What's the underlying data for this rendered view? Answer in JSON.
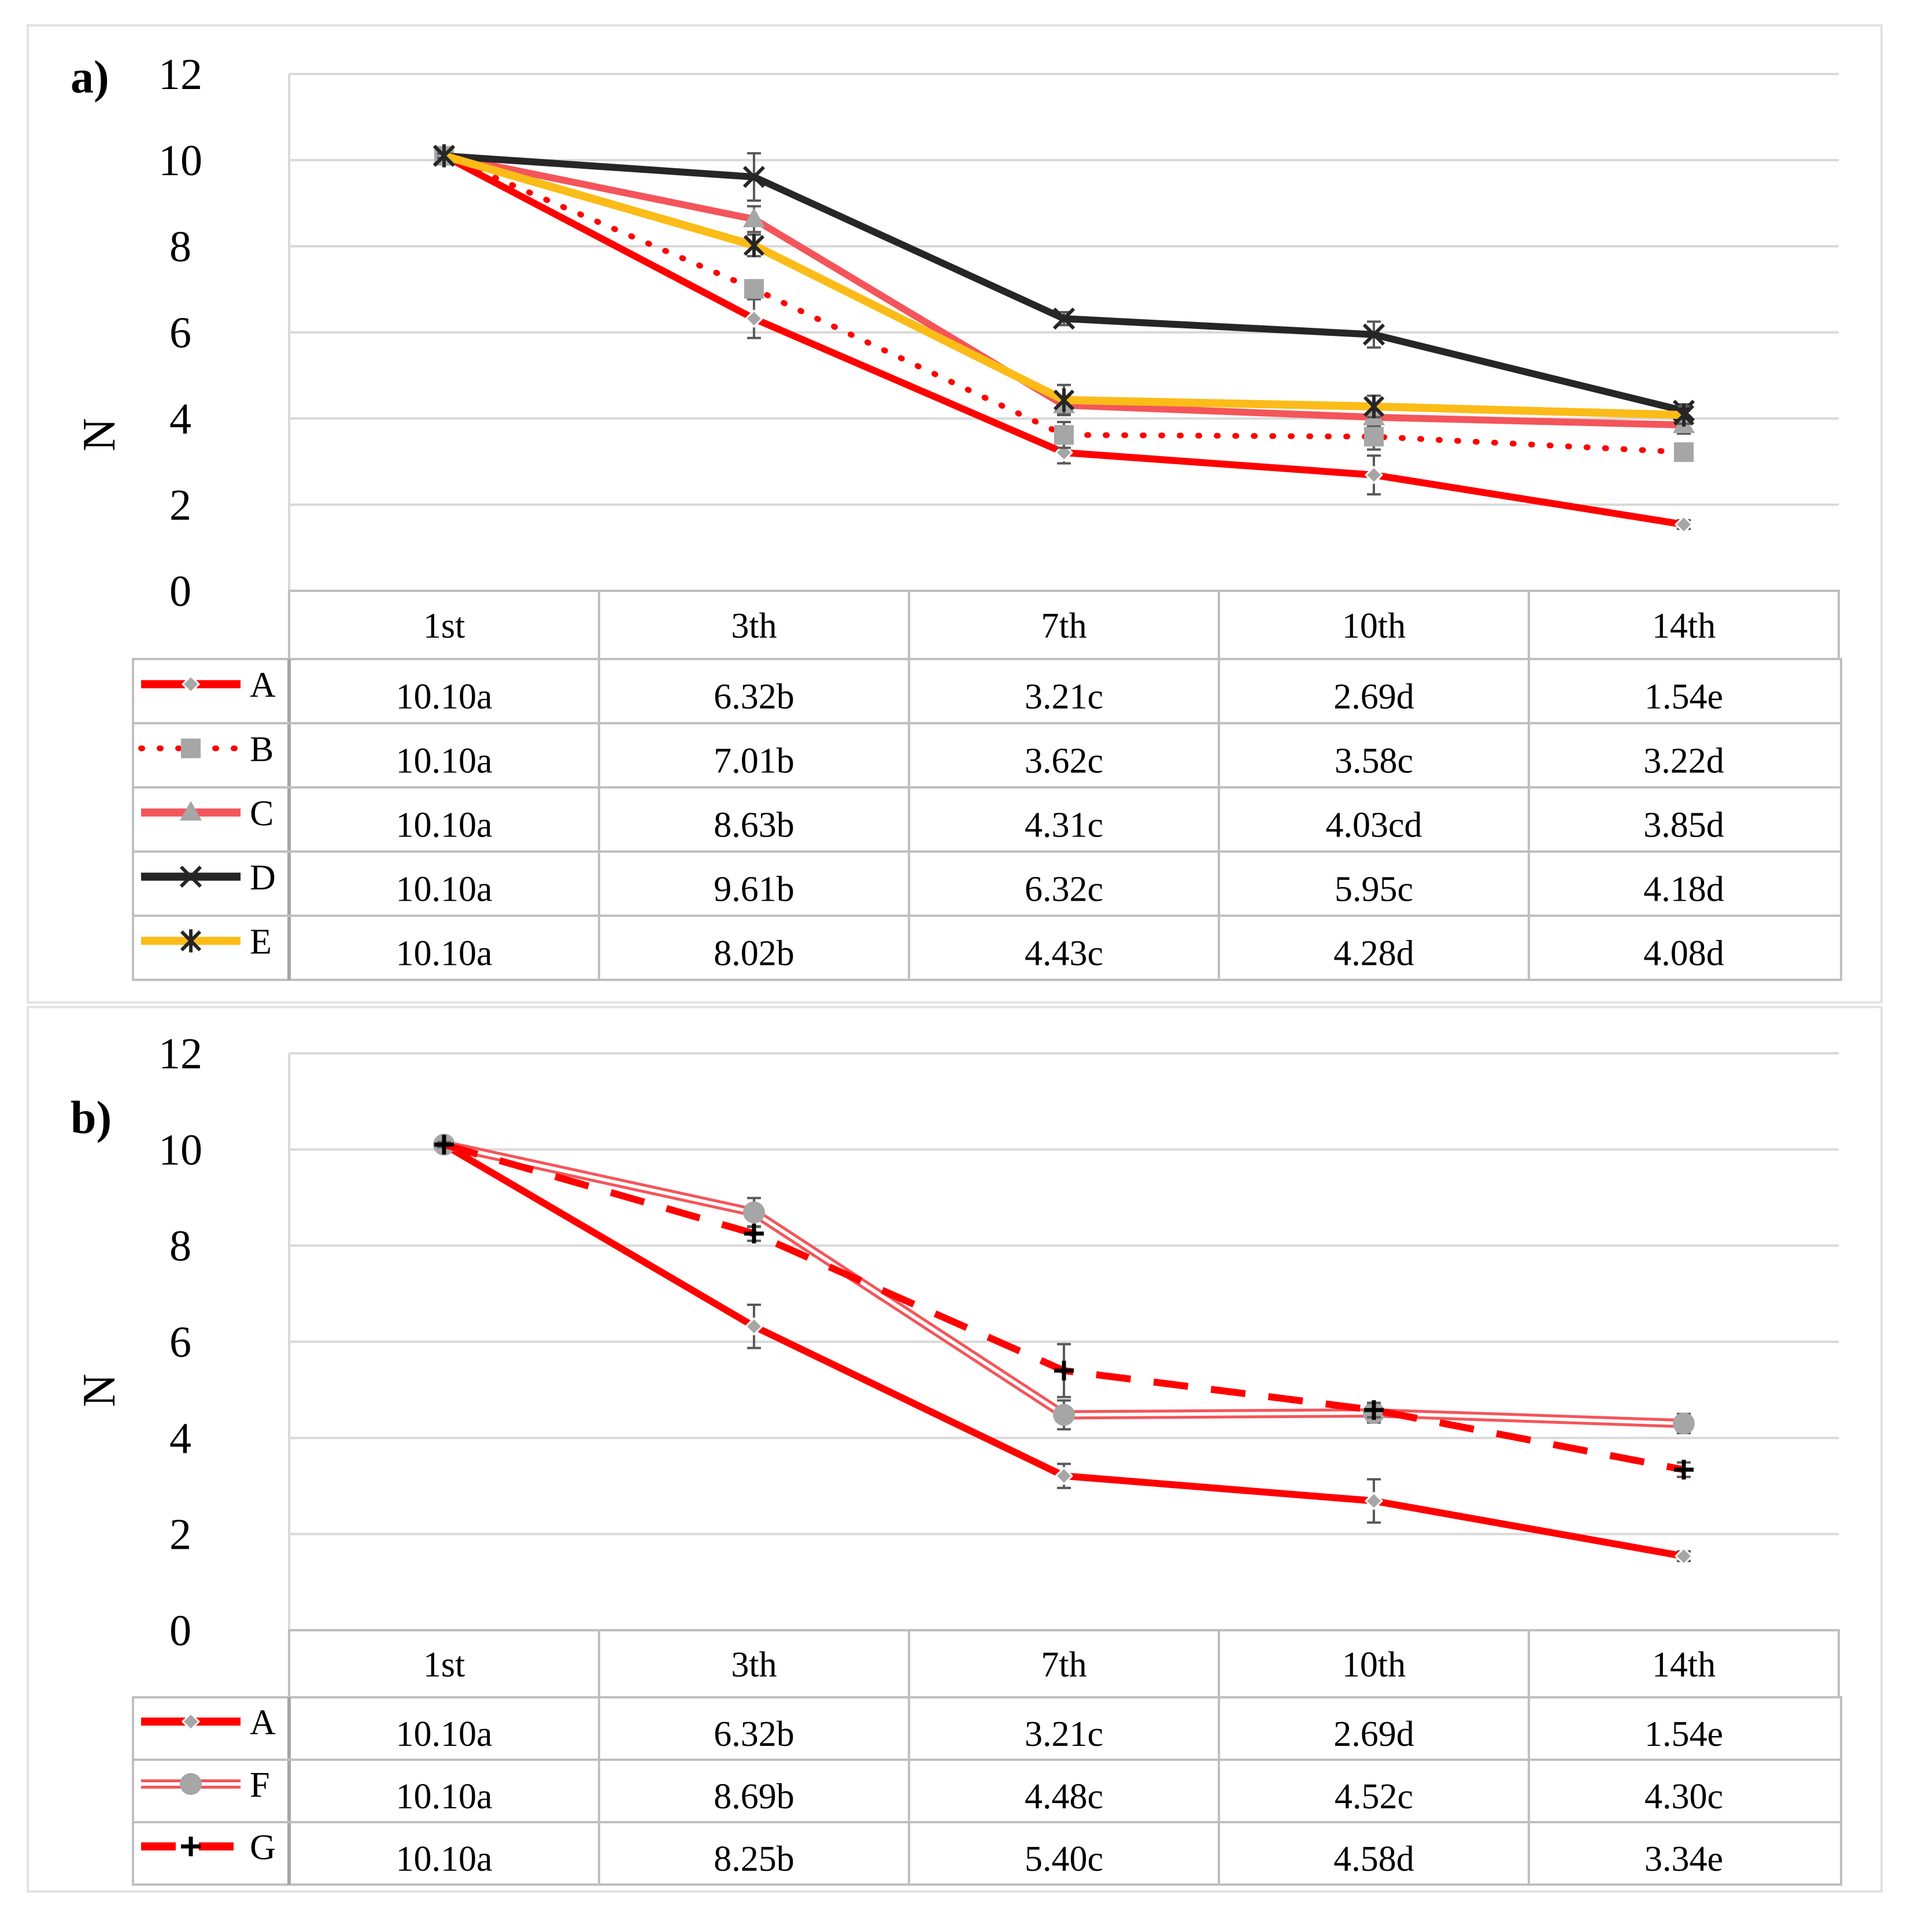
{
  "chart_data": [
    {
      "type": "line",
      "panel_label": "a)",
      "ylabel": "N",
      "ylim": [
        0,
        12
      ],
      "yticks": [
        "0",
        "2",
        "4",
        "6",
        "8",
        "10",
        "12"
      ],
      "categories": [
        "1st",
        "3th",
        "7th",
        "10th",
        "14th"
      ],
      "series": [
        {
          "name": "A",
          "color": "#ff0000",
          "style": "solid",
          "marker": "diamond",
          "values": [
            10.1,
            6.32,
            3.21,
            2.69,
            1.54
          ],
          "errors": [
            0.05,
            0.45,
            0.25,
            0.45,
            0.1
          ],
          "labels": [
            "10.10a",
            "6.32b",
            "3.21c",
            "2.69d",
            "1.54e"
          ]
        },
        {
          "name": "B",
          "color": "#ff0000",
          "style": "dotted",
          "marker": "square",
          "values": [
            10.1,
            7.01,
            3.62,
            3.58,
            3.22
          ],
          "errors": [
            0.05,
            0.2,
            0.3,
            0.3,
            0.15
          ],
          "labels": [
            "10.10a",
            "7.01b",
            "3.62c",
            "3.58c",
            "3.22d"
          ]
        },
        {
          "name": "C",
          "color": "#f4555a",
          "style": "solid",
          "marker": "triangle",
          "values": [
            10.1,
            8.63,
            4.31,
            4.03,
            3.85
          ],
          "errors": [
            0.05,
            0.3,
            0.2,
            0.2,
            0.2
          ],
          "labels": [
            "10.10a",
            "8.63b",
            "4.31c",
            "4.03cd",
            "3.85d"
          ]
        },
        {
          "name": "D",
          "color": "#262626",
          "style": "solid",
          "marker": "x",
          "values": [
            10.1,
            9.61,
            6.32,
            5.95,
            4.18
          ],
          "errors": [
            0.05,
            0.55,
            0.15,
            0.3,
            0.15
          ],
          "labels": [
            "10.10a",
            "9.61b",
            "6.32c",
            "5.95c",
            "4.18d"
          ]
        },
        {
          "name": "E",
          "color": "#fbbc18",
          "style": "solid",
          "marker": "asterisk",
          "values": [
            10.1,
            8.02,
            4.43,
            4.28,
            4.08
          ],
          "errors": [
            0.05,
            0.25,
            0.35,
            0.25,
            0.2
          ],
          "labels": [
            "10.10a",
            "8.02b",
            "4.43c",
            "4.28d",
            "4.08d"
          ]
        }
      ]
    },
    {
      "type": "line",
      "panel_label": "b)",
      "ylabel": "N",
      "ylim": [
        0,
        12
      ],
      "yticks": [
        "0",
        "2",
        "4",
        "6",
        "8",
        "10",
        "12"
      ],
      "categories": [
        "1st",
        "3th",
        "7th",
        "10th",
        "14th"
      ],
      "series": [
        {
          "name": "A",
          "color": "#ff0000",
          "style": "solid",
          "marker": "diamond",
          "values": [
            10.1,
            6.32,
            3.21,
            2.69,
            1.54
          ],
          "errors": [
            0.05,
            0.45,
            0.25,
            0.45,
            0.1
          ],
          "labels": [
            "10.10a",
            "6.32b",
            "3.21c",
            "2.69d",
            "1.54e"
          ]
        },
        {
          "name": "F",
          "color": "#f4555a",
          "style": "double",
          "marker": "circle",
          "values": [
            10.1,
            8.69,
            4.48,
            4.52,
            4.3
          ],
          "errors": [
            0.05,
            0.3,
            0.3,
            0.2,
            0.2
          ],
          "labels": [
            "10.10a",
            "8.69b",
            "4.48c",
            "4.52c",
            "4.30c"
          ]
        },
        {
          "name": "G",
          "color": "#ff0000",
          "style": "dashed",
          "marker": "plus",
          "values": [
            10.1,
            8.25,
            5.4,
            4.58,
            3.34
          ],
          "errors": [
            0.05,
            0.15,
            0.55,
            0.15,
            0.15
          ],
          "labels": [
            "10.10a",
            "8.25b",
            "5.40c",
            "4.58d",
            "3.34e"
          ]
        }
      ]
    }
  ]
}
